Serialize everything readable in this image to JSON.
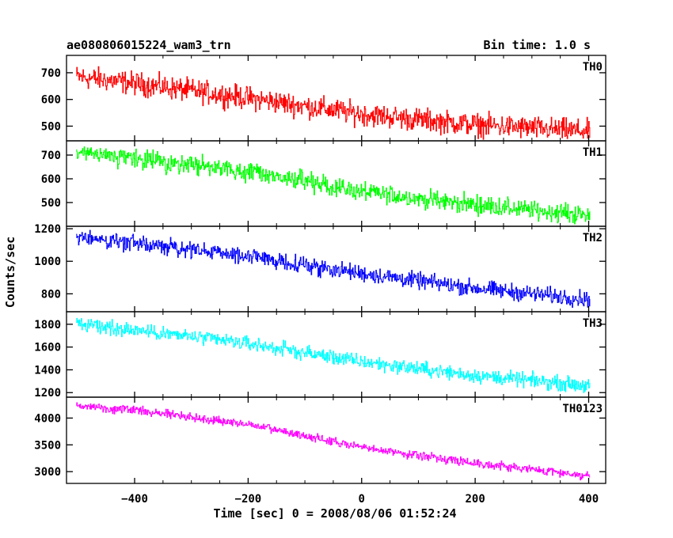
{
  "header": {
    "title": "ae080806015224_wam3_trn",
    "bin_time": "Bin time: 1.0 s"
  },
  "chart_data": {
    "type": "line",
    "xlabel": "Time [sec] 0 = 2008/08/06 01:52:24",
    "ylabel": "Counts/sec",
    "xlim": [
      -520,
      430
    ],
    "x_ticks": [
      -400,
      -200,
      0,
      200,
      400
    ],
    "x_tick_labels": [
      "−400",
      "−200",
      "0",
      "200",
      "400"
    ],
    "x_range": [
      -503,
      402
    ],
    "panels": [
      {
        "name": "TH0",
        "color": "#ff0000",
        "ylim": [
          445,
          765
        ],
        "y_ticks": [
          500,
          600,
          700
        ],
        "y_tick_labels": [
          "500",
          "600",
          "700"
        ],
        "trend": [
          {
            "x": -503,
            "y": 685
          },
          {
            "x": -400,
            "y": 660
          },
          {
            "x": -200,
            "y": 605
          },
          {
            "x": 0,
            "y": 545
          },
          {
            "x": 200,
            "y": 505
          },
          {
            "x": 402,
            "y": 480
          }
        ],
        "noise": 30
      },
      {
        "name": "TH1",
        "color": "#00ff00",
        "ylim": [
          400,
          760
        ],
        "y_ticks": [
          500,
          600,
          700
        ],
        "y_tick_labels": [
          "500",
          "600",
          "700"
        ],
        "trend": [
          {
            "x": -503,
            "y": 705
          },
          {
            "x": -400,
            "y": 685
          },
          {
            "x": -200,
            "y": 630
          },
          {
            "x": 0,
            "y": 545
          },
          {
            "x": 200,
            "y": 490
          },
          {
            "x": 402,
            "y": 445
          }
        ],
        "noise": 28
      },
      {
        "name": "TH2",
        "color": "#0000ff",
        "ylim": [
          690,
          1215
        ],
        "y_ticks": [
          800,
          1000,
          1200
        ],
        "y_tick_labels": [
          "800",
          "1000",
          "1200"
        ],
        "trend": [
          {
            "x": -503,
            "y": 1150
          },
          {
            "x": -400,
            "y": 1110
          },
          {
            "x": -200,
            "y": 1030
          },
          {
            "x": 0,
            "y": 925
          },
          {
            "x": 200,
            "y": 835
          },
          {
            "x": 402,
            "y": 765
          }
        ],
        "noise": 35
      },
      {
        "name": "TH3",
        "color": "#00ffff",
        "ylim": [
          1160,
          1910
        ],
        "y_ticks": [
          1200,
          1400,
          1600,
          1800
        ],
        "y_tick_labels": [
          "1200",
          "1400",
          "1600",
          "1800"
        ],
        "trend": [
          {
            "x": -503,
            "y": 1800
          },
          {
            "x": -400,
            "y": 1750
          },
          {
            "x": -200,
            "y": 1630
          },
          {
            "x": 0,
            "y": 1470
          },
          {
            "x": 200,
            "y": 1350
          },
          {
            "x": 402,
            "y": 1260
          }
        ],
        "noise": 45
      },
      {
        "name": "TH0123",
        "color": "#ff00ff",
        "ylim": [
          2780,
          4390
        ],
        "y_ticks": [
          3000,
          3500,
          4000
        ],
        "y_tick_labels": [
          "3000",
          "3500",
          "4000"
        ],
        "trend": [
          {
            "x": -503,
            "y": 4230
          },
          {
            "x": -400,
            "y": 4150
          },
          {
            "x": -200,
            "y": 3880
          },
          {
            "x": 0,
            "y": 3450
          },
          {
            "x": 200,
            "y": 3160
          },
          {
            "x": 402,
            "y": 2920
          }
        ],
        "noise": 55
      }
    ]
  }
}
